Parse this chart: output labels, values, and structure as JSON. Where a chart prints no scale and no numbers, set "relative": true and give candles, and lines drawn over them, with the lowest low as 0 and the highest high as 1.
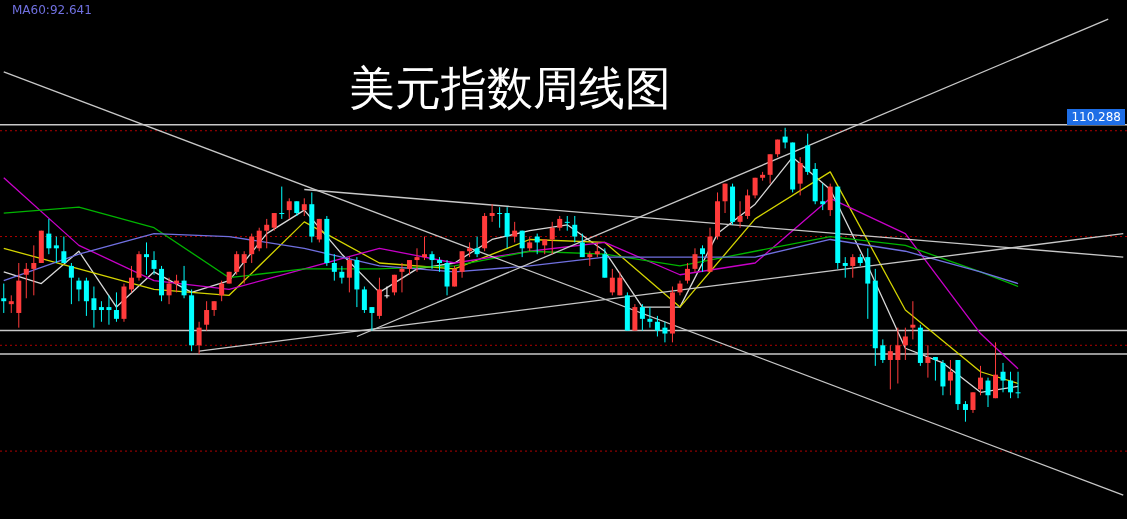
{
  "chart_data": {
    "type": "candlestick",
    "title": "美元指数周线图",
    "relative": true,
    "tick_labels": false,
    "legend": "top left",
    "categories": [
      null,
      null,
      null,
      null,
      null,
      null,
      null,
      null,
      null,
      null,
      null,
      null,
      null,
      null,
      null,
      null,
      null,
      null,
      null,
      null,
      null,
      null,
      null,
      null,
      null,
      null,
      null,
      null,
      null,
      null,
      null,
      null,
      null,
      null,
      null,
      null,
      null,
      null,
      null,
      null,
      null,
      null,
      null,
      null,
      null,
      null,
      null,
      null,
      null,
      null,
      null,
      null,
      null,
      null,
      null,
      null,
      null,
      null,
      null,
      null,
      null,
      null,
      null,
      null,
      null,
      null,
      null,
      null,
      null,
      null,
      null,
      null,
      null,
      null,
      null,
      null,
      null,
      null,
      null,
      null,
      null,
      null,
      null,
      null,
      null,
      null,
      null,
      null,
      null,
      null,
      null,
      null,
      null,
      null,
      null,
      null,
      null,
      null,
      null,
      null,
      null,
      null,
      null,
      null,
      null,
      null,
      null,
      null,
      null,
      null,
      null,
      null,
      null,
      null,
      null,
      null,
      null,
      null,
      null,
      null,
      null,
      null,
      null,
      null,
      null,
      null,
      null,
      null,
      null,
      null,
      null,
      null,
      null,
      null,
      null,
      null,
      null,
      null,
      null,
      null,
      null,
      null,
      null,
      null,
      null,
      null,
      null,
      null,
      null,
      null
    ],
    "ohlc": [
      [
        0.42,
        0.47,
        0.37,
        0.41
      ],
      [
        0.4,
        0.43,
        0.37,
        0.41
      ],
      [
        0.37,
        0.54,
        0.32,
        0.48
      ],
      [
        0.5,
        0.54,
        0.42,
        0.52
      ],
      [
        0.52,
        0.6,
        0.43,
        0.54
      ],
      [
        0.54,
        0.65,
        0.54,
        0.65
      ],
      [
        0.64,
        0.69,
        0.57,
        0.59
      ],
      [
        0.6,
        0.63,
        0.54,
        0.59
      ],
      [
        0.58,
        0.63,
        0.54,
        0.54
      ],
      [
        0.53,
        0.54,
        0.4,
        0.49
      ],
      [
        0.48,
        0.49,
        0.41,
        0.45
      ],
      [
        0.48,
        0.49,
        0.36,
        0.41
      ],
      [
        0.42,
        0.46,
        0.32,
        0.38
      ],
      [
        0.39,
        0.41,
        0.34,
        0.38
      ],
      [
        0.39,
        0.43,
        0.33,
        0.38
      ],
      [
        0.38,
        0.44,
        0.34,
        0.35
      ],
      [
        0.35,
        0.47,
        0.34,
        0.46
      ],
      [
        0.45,
        0.53,
        0.44,
        0.49
      ],
      [
        0.49,
        0.58,
        0.48,
        0.57
      ],
      [
        0.57,
        0.61,
        0.5,
        0.56
      ],
      [
        0.55,
        0.58,
        0.5,
        0.52
      ],
      [
        0.52,
        0.53,
        0.41,
        0.43
      ],
      [
        0.43,
        0.49,
        0.4,
        0.47
      ],
      [
        0.47,
        0.5,
        0.44,
        0.48
      ],
      [
        0.48,
        0.53,
        0.42,
        0.43
      ],
      [
        0.43,
        0.45,
        0.24,
        0.26
      ],
      [
        0.26,
        0.34,
        0.23,
        0.32
      ],
      [
        0.33,
        0.41,
        0.31,
        0.38
      ],
      [
        0.38,
        0.41,
        0.36,
        0.41
      ],
      [
        0.43,
        0.48,
        0.41,
        0.47
      ],
      [
        0.47,
        0.51,
        0.47,
        0.51
      ],
      [
        0.51,
        0.58,
        0.5,
        0.57
      ],
      [
        0.54,
        0.58,
        0.47,
        0.57
      ],
      [
        0.57,
        0.64,
        0.54,
        0.63
      ],
      [
        0.59,
        0.66,
        0.58,
        0.65
      ],
      [
        0.65,
        0.69,
        0.59,
        0.67
      ],
      [
        0.66,
        0.71,
        0.65,
        0.71
      ],
      [
        0.71,
        0.8,
        0.69,
        0.71
      ],
      [
        0.72,
        0.76,
        0.69,
        0.75
      ],
      [
        0.75,
        0.75,
        0.7,
        0.71
      ],
      [
        0.72,
        0.76,
        0.7,
        0.74
      ],
      [
        0.74,
        0.78,
        0.61,
        0.63
      ],
      [
        0.62,
        0.69,
        0.61,
        0.69
      ],
      [
        0.69,
        0.7,
        0.53,
        0.54
      ],
      [
        0.54,
        0.57,
        0.48,
        0.51
      ],
      [
        0.51,
        0.53,
        0.47,
        0.49
      ],
      [
        0.49,
        0.56,
        0.44,
        0.55
      ],
      [
        0.55,
        0.56,
        0.39,
        0.45
      ],
      [
        0.45,
        0.46,
        0.37,
        0.38
      ],
      [
        0.39,
        0.39,
        0.31,
        0.37
      ],
      [
        0.36,
        0.49,
        0.35,
        0.45
      ],
      [
        0.43,
        0.46,
        0.42,
        0.43
      ],
      [
        0.44,
        0.5,
        0.43,
        0.5
      ],
      [
        0.51,
        0.54,
        0.44,
        0.52
      ],
      [
        0.52,
        0.55,
        0.5,
        0.55
      ],
      [
        0.55,
        0.59,
        0.51,
        0.56
      ],
      [
        0.56,
        0.63,
        0.55,
        0.57
      ],
      [
        0.57,
        0.58,
        0.52,
        0.55
      ],
      [
        0.55,
        0.56,
        0.51,
        0.54
      ],
      [
        0.54,
        0.55,
        0.43,
        0.46
      ],
      [
        0.46,
        0.53,
        0.46,
        0.52
      ],
      [
        0.51,
        0.58,
        0.49,
        0.58
      ],
      [
        0.58,
        0.61,
        0.56,
        0.59
      ],
      [
        0.59,
        0.63,
        0.56,
        0.57
      ],
      [
        0.59,
        0.71,
        0.58,
        0.7
      ],
      [
        0.7,
        0.74,
        0.68,
        0.71
      ],
      [
        0.71,
        0.73,
        0.66,
        0.71
      ],
      [
        0.71,
        0.73,
        0.59,
        0.63
      ],
      [
        0.63,
        0.68,
        0.61,
        0.65
      ],
      [
        0.65,
        0.65,
        0.56,
        0.59
      ],
      [
        0.59,
        0.63,
        0.58,
        0.61
      ],
      [
        0.63,
        0.64,
        0.57,
        0.61
      ],
      [
        0.6,
        0.62,
        0.57,
        0.62
      ],
      [
        0.62,
        0.68,
        0.57,
        0.66
      ],
      [
        0.66,
        0.7,
        0.65,
        0.69
      ],
      [
        0.68,
        0.7,
        0.65,
        0.68
      ],
      [
        0.67,
        0.7,
        0.61,
        0.63
      ],
      [
        0.61,
        0.64,
        0.56,
        0.56
      ],
      [
        0.56,
        0.58,
        0.53,
        0.57
      ],
      [
        0.57,
        0.61,
        0.56,
        0.58
      ],
      [
        0.57,
        0.59,
        0.49,
        0.49
      ],
      [
        0.44,
        0.52,
        0.43,
        0.49
      ],
      [
        0.43,
        0.51,
        0.43,
        0.49
      ],
      [
        0.43,
        0.44,
        0.31,
        0.31
      ],
      [
        0.31,
        0.4,
        0.31,
        0.39
      ],
      [
        0.39,
        0.4,
        0.31,
        0.35
      ],
      [
        0.35,
        0.39,
        0.32,
        0.34
      ],
      [
        0.34,
        0.36,
        0.29,
        0.31
      ],
      [
        0.32,
        0.34,
        0.27,
        0.3
      ],
      [
        0.3,
        0.46,
        0.27,
        0.44
      ],
      [
        0.44,
        0.48,
        0.43,
        0.47
      ],
      [
        0.48,
        0.54,
        0.47,
        0.52
      ],
      [
        0.52,
        0.59,
        0.51,
        0.57
      ],
      [
        0.59,
        0.6,
        0.51,
        0.57
      ],
      [
        0.51,
        0.66,
        0.51,
        0.63
      ],
      [
        0.63,
        0.78,
        0.62,
        0.75
      ],
      [
        0.75,
        0.81,
        0.71,
        0.81
      ],
      [
        0.8,
        0.81,
        0.67,
        0.68
      ],
      [
        0.68,
        0.75,
        0.66,
        0.7
      ],
      [
        0.7,
        0.79,
        0.69,
        0.77
      ],
      [
        0.77,
        0.83,
        0.76,
        0.83
      ],
      [
        0.83,
        0.85,
        0.82,
        0.84
      ],
      [
        0.84,
        0.91,
        0.81,
        0.91
      ],
      [
        0.91,
        0.96,
        0.9,
        0.96
      ],
      [
        0.97,
        1.0,
        0.93,
        0.95
      ],
      [
        0.95,
        0.95,
        0.78,
        0.79
      ],
      [
        0.81,
        0.9,
        0.77,
        0.88
      ],
      [
        0.94,
        0.98,
        0.84,
        0.85
      ],
      [
        0.86,
        0.88,
        0.74,
        0.75
      ],
      [
        0.75,
        0.81,
        0.72,
        0.74
      ],
      [
        0.72,
        0.81,
        0.7,
        0.8
      ],
      [
        0.8,
        0.8,
        0.52,
        0.54
      ],
      [
        0.54,
        0.56,
        0.49,
        0.53
      ],
      [
        0.53,
        0.57,
        0.49,
        0.56
      ],
      [
        0.56,
        0.57,
        0.53,
        0.54
      ],
      [
        0.56,
        0.59,
        0.35,
        0.47
      ],
      [
        0.48,
        0.52,
        0.19,
        0.25
      ],
      [
        0.26,
        0.28,
        0.2,
        0.21
      ],
      [
        0.21,
        0.26,
        0.11,
        0.24
      ],
      [
        0.21,
        0.32,
        0.13,
        0.26
      ],
      [
        0.26,
        0.32,
        0.21,
        0.29
      ],
      [
        0.32,
        0.41,
        0.28,
        0.33
      ],
      [
        0.32,
        0.33,
        0.19,
        0.2
      ],
      [
        0.2,
        0.26,
        0.15,
        0.22
      ],
      [
        0.22,
        0.22,
        0.14,
        0.21
      ],
      [
        0.2,
        0.21,
        0.09,
        0.12
      ],
      [
        0.14,
        0.21,
        0.09,
        0.17
      ],
      [
        0.21,
        0.21,
        0.04,
        0.06
      ],
      [
        0.06,
        0.07,
        0.0,
        0.04
      ],
      [
        0.04,
        0.1,
        0.03,
        0.1
      ],
      [
        0.11,
        0.19,
        0.09,
        0.15
      ],
      [
        0.14,
        0.15,
        0.05,
        0.09
      ],
      [
        0.08,
        0.27,
        0.08,
        0.16
      ],
      [
        0.17,
        0.2,
        0.1,
        0.14
      ],
      [
        0.14,
        0.17,
        0.08,
        0.1
      ],
      [
        0.1,
        0.17,
        0.08,
        0.1
      ],
      null,
      null,
      null,
      null,
      null,
      null,
      null,
      null,
      null,
      null,
      null,
      null,
      null,
      null
    ],
    "colors": [
      "#00ffff",
      "#ff3b3b",
      "#ff3b3b",
      "#ff3b3b",
      "#ff3b3b",
      "#ff3b3b",
      "#00ffff",
      "#00ffff",
      "#00ffff",
      "#00ffff",
      "#00ffff",
      "#00ffff",
      "#00ffff",
      "#00ffff",
      "#00ffff",
      "#00ffff",
      "#ff3b3b",
      "#ff3b3b",
      "#ff3b3b",
      "#00ffff",
      "#00ffff",
      "#00ffff",
      "#ff3b3b",
      "#ff3b3b",
      "#00ffff",
      "#00ffff",
      "#ff3b3b",
      "#ff3b3b",
      "#ff3b3b",
      "#ff3b3b",
      "#ff3b3b",
      "#ff3b3b",
      "#ff3b3b",
      "#ff3b3b",
      "#ff3b3b",
      "#ff3b3b",
      "#ff3b3b",
      "#00ffff",
      "#ff3b3b",
      "#00ffff",
      "#ff3b3b",
      "#00ffff",
      "#ff3b3b",
      "#00ffff",
      "#00ffff",
      "#00ffff",
      "#ff3b3b",
      "#00ffff",
      "#00ffff",
      "#00ffff",
      "#ff3b3b",
      "#ffffff",
      "#ff3b3b",
      "#ff3b3b",
      "#ff3b3b",
      "#ff3b3b",
      "#ff3b3b",
      "#00ffff",
      "#00ffff",
      "#00ffff",
      "#ff3b3b",
      "#ff3b3b",
      "#ff3b3b",
      "#00ffff",
      "#ff3b3b",
      "#ff3b3b",
      "#00ffff",
      "#00ffff",
      "#ff3b3b",
      "#00ffff",
      "#ff3b3b",
      "#00ffff",
      "#ff3b3b",
      "#ff3b3b",
      "#ff3b3b",
      "#00ffff",
      "#00ffff",
      "#00ffff",
      "#ff3b3b",
      "#ff3b3b",
      "#00ffff",
      "#ff3b3b",
      "#ff3b3b",
      "#00ffff",
      "#ff3b3b",
      "#00ffff",
      "#00ffff",
      "#00ffff",
      "#00ffff",
      "#ff3b3b",
      "#ff3b3b",
      "#ff3b3b",
      "#ff3b3b",
      "#00ffff",
      "#ff3b3b",
      "#ff3b3b",
      "#ff3b3b",
      "#00ffff",
      "#ff3b3b",
      "#ff3b3b",
      "#ff3b3b",
      "#ff3b3b",
      "#ff3b3b",
      "#ff3b3b",
      "#00ffff",
      "#00ffff",
      "#ff3b3b",
      "#00ffff",
      "#00ffff",
      "#00ffff",
      "#ff3b3b",
      "#00ffff",
      "#00ffff",
      "#ff3b3b",
      "#00ffff",
      "#00ffff",
      "#00ffff",
      "#00ffff",
      "#ff3b3b",
      "#ff3b3b",
      "#ff3b3b",
      "#ff3b3b",
      "#00ffff",
      "#ff3b3b",
      "#00ffff",
      "#00ffff",
      "#ff3b3b",
      "#00ffff",
      "#00ffff",
      "#ff3b3b",
      "#ff3b3b",
      "#00ffff",
      "#ff3b3b",
      "#00ffff",
      "#00ffff",
      "#00ffff",
      null,
      null,
      null,
      null,
      null,
      null,
      null,
      null,
      null,
      null,
      null,
      null,
      null,
      null
    ],
    "annotations": [
      "110.288"
    ],
    "series": [
      {
        "type": "line",
        "color": "#d8d8d8",
        "values": [
          0.51,
          null,
          null,
          null,
          null,
          0.47,
          null,
          null,
          null,
          null,
          0.58,
          null,
          null,
          null,
          null,
          0.39,
          null,
          null,
          null,
          null,
          0.51,
          null,
          null,
          null,
          null,
          0.44,
          null,
          null,
          null,
          null,
          0.48,
          null,
          null,
          null,
          null,
          0.64,
          null,
          null,
          null,
          null,
          0.72,
          null,
          null,
          null,
          null,
          0.57,
          null,
          null,
          null,
          null,
          0.44,
          null,
          null,
          null,
          null,
          0.52,
          null,
          null,
          null,
          null,
          0.54,
          null,
          null,
          null,
          null,
          0.62,
          null,
          null,
          null,
          null,
          0.65,
          null,
          null,
          null,
          null,
          0.67,
          null,
          null,
          null,
          null,
          0.58,
          null,
          null,
          null,
          null,
          0.39,
          null,
          null,
          null,
          null,
          0.39,
          null,
          null,
          null,
          null,
          0.64,
          null,
          null,
          null,
          null,
          0.74,
          null,
          null,
          null,
          null,
          0.9,
          null,
          null,
          null,
          null,
          0.79,
          null,
          null,
          null,
          null,
          0.53,
          null,
          null,
          null,
          null,
          0.25,
          null,
          null,
          null,
          null,
          0.2,
          null,
          null,
          null,
          null,
          0.1,
          null,
          null,
          null,
          null,
          0.12,
          null,
          null,
          null,
          null,
          null,
          null,
          null,
          null,
          null,
          null,
          null,
          null,
          null,
          null
        ]
      },
      {
        "type": "line",
        "color": "#d4d400",
        "values": [
          0.59,
          null,
          null,
          null,
          null,
          null,
          null,
          null,
          null,
          null,
          0.52,
          null,
          null,
          null,
          null,
          null,
          null,
          null,
          null,
          null,
          0.45,
          null,
          null,
          null,
          null,
          null,
          null,
          null,
          null,
          null,
          0.43,
          null,
          null,
          null,
          null,
          null,
          null,
          null,
          null,
          null,
          0.68,
          null,
          null,
          null,
          null,
          null,
          null,
          null,
          null,
          null,
          0.54,
          null,
          null,
          null,
          null,
          null,
          null,
          null,
          null,
          null,
          0.52,
          null,
          null,
          null,
          null,
          null,
          null,
          null,
          null,
          null,
          0.62,
          null,
          null,
          null,
          null,
          null,
          null,
          null,
          null,
          null,
          0.61,
          null,
          null,
          null,
          null,
          null,
          null,
          null,
          null,
          null,
          0.39,
          null,
          null,
          null,
          null,
          null,
          null,
          null,
          null,
          null,
          0.69,
          null,
          null,
          null,
          null,
          null,
          null,
          null,
          null,
          null,
          0.85,
          null,
          null,
          null,
          null,
          null,
          null,
          null,
          null,
          null,
          0.38,
          null,
          null,
          null,
          null,
          null,
          null,
          null,
          null,
          null,
          0.17,
          null,
          null,
          null,
          null,
          0.13,
          null,
          null,
          null,
          null,
          null,
          null,
          null,
          null,
          null,
          null,
          null,
          null,
          null,
          null
        ]
      },
      {
        "type": "line",
        "color": "#c800c8",
        "values": [
          0.83,
          null,
          null,
          null,
          null,
          null,
          null,
          null,
          null,
          null,
          0.6,
          null,
          null,
          null,
          null,
          null,
          null,
          null,
          null,
          null,
          0.48,
          null,
          null,
          null,
          null,
          null,
          null,
          null,
          null,
          null,
          0.45,
          null,
          null,
          null,
          null,
          null,
          null,
          null,
          null,
          null,
          0.52,
          null,
          null,
          null,
          null,
          null,
          null,
          null,
          null,
          null,
          0.59,
          null,
          null,
          null,
          null,
          null,
          null,
          null,
          null,
          null,
          0.54,
          null,
          null,
          null,
          null,
          null,
          null,
          null,
          null,
          null,
          0.58,
          null,
          null,
          null,
          null,
          null,
          null,
          null,
          null,
          null,
          0.61,
          null,
          null,
          null,
          null,
          null,
          null,
          null,
          null,
          null,
          0.5,
          null,
          null,
          null,
          null,
          null,
          null,
          null,
          null,
          null,
          0.54,
          null,
          null,
          null,
          null,
          null,
          null,
          null,
          null,
          null,
          0.76,
          null,
          null,
          null,
          null,
          null,
          null,
          null,
          null,
          null,
          0.64,
          null,
          null,
          null,
          null,
          null,
          null,
          null,
          null,
          null,
          0.3,
          null,
          null,
          null,
          null,
          0.18,
          null,
          null,
          null,
          null,
          null,
          null,
          null,
          null,
          null,
          null,
          null,
          null,
          null,
          null
        ]
      },
      {
        "type": "line",
        "color": "#00b400",
        "values": [
          0.71,
          null,
          null,
          null,
          null,
          null,
          null,
          null,
          null,
          null,
          0.73,
          null,
          null,
          null,
          null,
          null,
          null,
          null,
          null,
          null,
          0.66,
          null,
          null,
          null,
          null,
          null,
          null,
          null,
          null,
          null,
          0.49,
          null,
          null,
          null,
          null,
          null,
          null,
          null,
          null,
          null,
          0.52,
          null,
          null,
          null,
          null,
          null,
          null,
          null,
          null,
          null,
          0.52,
          null,
          null,
          null,
          null,
          null,
          null,
          null,
          null,
          null,
          0.53,
          null,
          null,
          null,
          null,
          null,
          null,
          null,
          null,
          null,
          0.58,
          null,
          null,
          null,
          null,
          null,
          null,
          null,
          null,
          null,
          0.57,
          null,
          null,
          null,
          null,
          null,
          null,
          null,
          null,
          null,
          0.53,
          null,
          null,
          null,
          null,
          null,
          null,
          null,
          null,
          null,
          0.58,
          null,
          null,
          null,
          null,
          null,
          null,
          null,
          null,
          null,
          0.63,
          null,
          null,
          null,
          null,
          null,
          null,
          null,
          null,
          null,
          0.6,
          null,
          null,
          null,
          null,
          null,
          null,
          null,
          null,
          null,
          0.51,
          null,
          null,
          null,
          null,
          0.46,
          null,
          null,
          null,
          null,
          null,
          null,
          null,
          null,
          null,
          null,
          null,
          null,
          null,
          null
        ]
      },
      {
        "type": "line",
        "name": "MA60:92.641",
        "color": "#7070e0",
        "values": [
          0.48,
          null,
          null,
          null,
          null,
          null,
          null,
          null,
          null,
          null,
          0.57,
          null,
          null,
          null,
          null,
          null,
          null,
          null,
          null,
          null,
          0.64,
          null,
          null,
          null,
          null,
          null,
          null,
          null,
          null,
          null,
          0.63,
          null,
          null,
          null,
          null,
          null,
          null,
          null,
          null,
          null,
          0.59,
          null,
          null,
          null,
          null,
          null,
          null,
          null,
          null,
          null,
          0.53,
          null,
          null,
          null,
          null,
          null,
          null,
          null,
          null,
          null,
          0.51,
          null,
          null,
          null,
          null,
          null,
          null,
          null,
          null,
          null,
          0.53,
          null,
          null,
          null,
          null,
          null,
          null,
          null,
          null,
          null,
          0.56,
          null,
          null,
          null,
          null,
          null,
          null,
          null,
          null,
          null,
          0.56,
          null,
          null,
          null,
          null,
          null,
          null,
          null,
          null,
          null,
          0.56,
          null,
          null,
          null,
          null,
          null,
          null,
          null,
          null,
          null,
          0.62,
          null,
          null,
          null,
          null,
          null,
          null,
          null,
          null,
          null,
          0.58,
          null,
          null,
          null,
          null,
          null,
          null,
          null,
          null,
          null,
          0.51,
          null,
          null,
          null,
          null,
          0.47,
          null,
          null,
          null,
          null,
          null,
          null,
          null,
          null,
          null,
          null,
          null,
          null,
          null,
          null
        ]
      },
      {
        "type": "line",
        "color": "#c8c8c8",
        "values": [
          1.19,
          null,
          null,
          null,
          null,
          null,
          null,
          null,
          null,
          null,
          null,
          null,
          null,
          null,
          null,
          null,
          null,
          null,
          null,
          null,
          null,
          null,
          null,
          null,
          null,
          null,
          null,
          null,
          null,
          null,
          null,
          null,
          null,
          null,
          null,
          null,
          null,
          null,
          null,
          null,
          null,
          null,
          null,
          null,
          null,
          null,
          null,
          null,
          null,
          null,
          null,
          null,
          null,
          null,
          null,
          null,
          null,
          null,
          null,
          null,
          null,
          null,
          null,
          null,
          null,
          null,
          null,
          null,
          null,
          null,
          null,
          null,
          null,
          null,
          null,
          null,
          null,
          null,
          null,
          null,
          null,
          null,
          null,
          null,
          null,
          null,
          null,
          null,
          null,
          null,
          null,
          null,
          null,
          null,
          null,
          null,
          null,
          null,
          null,
          null,
          null,
          null,
          null,
          null,
          null,
          null,
          null,
          null,
          null,
          null,
          null,
          null,
          null,
          null,
          null,
          null,
          null,
          null,
          null,
          null,
          null,
          null,
          null,
          null,
          null,
          null,
          null,
          null,
          null,
          null,
          null,
          null,
          null,
          null,
          null,
          null,
          null,
          null,
          null,
          null,
          null,
          null,
          null,
          null,
          null,
          null,
          null,
          null,
          null,
          -0.25
        ]
      },
      {
        "type": "line",
        "color": "#c8c8c8",
        "values": [
          null,
          null,
          null,
          null,
          null,
          null,
          null,
          null,
          null,
          null,
          null,
          null,
          null,
          null,
          null,
          null,
          null,
          null,
          null,
          null,
          null,
          null,
          null,
          null,
          null,
          null,
          null,
          null,
          null,
          null,
          null,
          null,
          null,
          null,
          null,
          null,
          null,
          null,
          null,
          null,
          0.79,
          null,
          null,
          null,
          null,
          null,
          null,
          null,
          null,
          null,
          null,
          null,
          null,
          null,
          null,
          null,
          null,
          null,
          null,
          null,
          null,
          null,
          null,
          null,
          null,
          null,
          null,
          null,
          null,
          null,
          null,
          null,
          null,
          null,
          null,
          null,
          null,
          null,
          null,
          null,
          null,
          null,
          null,
          null,
          null,
          null,
          null,
          null,
          null,
          null,
          null,
          null,
          null,
          null,
          null,
          null,
          null,
          null,
          null,
          null,
          null,
          null,
          null,
          null,
          null,
          null,
          null,
          null,
          null,
          null,
          null,
          null,
          null,
          null,
          null,
          null,
          null,
          null,
          null,
          null,
          null,
          null,
          null,
          null,
          null,
          null,
          null,
          null,
          null,
          null,
          null,
          null,
          null,
          null,
          null,
          null,
          null,
          null,
          null,
          null,
          null,
          null,
          null,
          null,
          null,
          null,
          null,
          null,
          null,
          0.56
        ]
      },
      {
        "type": "line",
        "color": "#c8c8c8",
        "values": [
          null,
          null,
          null,
          null,
          null,
          null,
          null,
          null,
          null,
          null,
          null,
          null,
          null,
          null,
          null,
          null,
          null,
          null,
          null,
          null,
          null,
          null,
          null,
          null,
          null,
          null,
          0.24,
          null,
          null,
          null,
          null,
          null,
          null,
          null,
          null,
          null,
          null,
          null,
          null,
          null,
          null,
          null,
          null,
          null,
          null,
          null,
          null,
          null,
          null,
          null,
          null,
          null,
          null,
          null,
          null,
          null,
          null,
          null,
          null,
          null,
          null,
          null,
          null,
          null,
          null,
          null,
          null,
          null,
          null,
          null,
          null,
          null,
          null,
          null,
          null,
          null,
          null,
          null,
          null,
          null,
          null,
          null,
          null,
          null,
          null,
          null,
          null,
          null,
          null,
          null,
          null,
          null,
          null,
          null,
          null,
          null,
          null,
          null,
          null,
          null,
          null,
          null,
          null,
          null,
          null,
          null,
          null,
          null,
          null,
          null,
          null,
          null,
          null,
          null,
          null,
          null,
          null,
          null,
          null,
          null,
          null,
          null,
          null,
          null,
          null,
          null,
          null,
          null,
          null,
          null,
          null,
          null,
          null,
          null,
          null,
          null,
          null,
          null,
          null,
          null,
          null,
          null,
          null,
          null,
          null,
          null,
          null,
          null,
          null,
          0.64
        ]
      },
      {
        "type": "line",
        "color": "#c8c8c8",
        "values": [
          null,
          null,
          null,
          null,
          null,
          null,
          null,
          null,
          null,
          null,
          null,
          null,
          null,
          null,
          null,
          null,
          null,
          null,
          null,
          null,
          null,
          null,
          null,
          null,
          null,
          null,
          null,
          null,
          null,
          null,
          null,
          null,
          null,
          null,
          null,
          null,
          null,
          null,
          null,
          null,
          null,
          null,
          null,
          null,
          null,
          null,
          null,
          0.29,
          null,
          null,
          null,
          null,
          null,
          null,
          null,
          null,
          null,
          null,
          null,
          null,
          null,
          null,
          null,
          null,
          null,
          null,
          null,
          null,
          null,
          null,
          null,
          null,
          null,
          null,
          null,
          null,
          null,
          null,
          null,
          null,
          null,
          null,
          null,
          null,
          null,
          null,
          null,
          null,
          null,
          null,
          null,
          null,
          null,
          null,
          null,
          null,
          null,
          null,
          null,
          null,
          null,
          null,
          null,
          null,
          null,
          null,
          null,
          null,
          null,
          null,
          null,
          null,
          null,
          null,
          null,
          null,
          null,
          null,
          null,
          null,
          null,
          null,
          null,
          null,
          null,
          null,
          null,
          null,
          null,
          null,
          null,
          null,
          null,
          null,
          null,
          null,
          null,
          null,
          null,
          null,
          null,
          null,
          null,
          null,
          null,
          null,
          null,
          1.37,
          null,
          null
        ]
      }
    ],
    "ref_lines": [
      {
        "axis": "y",
        "value": 1.01,
        "color": "#c8c8c8"
      },
      {
        "axis": "y",
        "value": 0.31,
        "color": "#c8c8c8"
      },
      {
        "axis": "y",
        "value": 0.23,
        "color": "#c8c8c8"
      },
      {
        "axis": "y",
        "value": 0.99,
        "color": "#b00000",
        "line_style": "dotted"
      },
      {
        "axis": "y",
        "value": 0.63,
        "color": "#b00000",
        "line_style": "dotted"
      },
      {
        "axis": "y",
        "value": 0.26,
        "color": "#b00000",
        "line_style": "dotted"
      },
      {
        "axis": "y",
        "value": -0.1,
        "color": "#b00000",
        "line_style": "dotted"
      }
    ]
  }
}
